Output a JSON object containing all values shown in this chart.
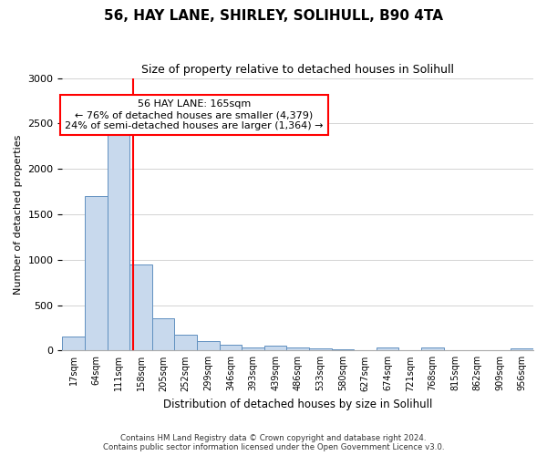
{
  "title": "56, HAY LANE, SHIRLEY, SOLIHULL, B90 4TA",
  "subtitle": "Size of property relative to detached houses in Solihull",
  "xlabel": "Distribution of detached houses by size in Solihull",
  "ylabel": "Number of detached properties",
  "bar_color": "#c8d9ed",
  "bar_edge_color": "#6090c0",
  "categories": [
    "17sqm",
    "64sqm",
    "111sqm",
    "158sqm",
    "205sqm",
    "252sqm",
    "299sqm",
    "346sqm",
    "393sqm",
    "439sqm",
    "486sqm",
    "533sqm",
    "580sqm",
    "627sqm",
    "674sqm",
    "721sqm",
    "768sqm",
    "815sqm",
    "862sqm",
    "909sqm",
    "956sqm"
  ],
  "values": [
    150,
    1700,
    2400,
    950,
    350,
    170,
    100,
    60,
    30,
    50,
    30,
    20,
    10,
    5,
    30,
    5,
    30,
    5,
    5,
    5,
    20
  ],
  "ylim": [
    0,
    3000
  ],
  "yticks": [
    0,
    500,
    1000,
    1500,
    2000,
    2500,
    3000
  ],
  "property_line_color": "red",
  "annotation_text": "56 HAY LANE: 165sqm\n← 76% of detached houses are smaller (4,379)\n24% of semi-detached houses are larger (1,364) →",
  "annotation_box_color": "white",
  "annotation_box_edgecolor": "red",
  "footer_line1": "Contains HM Land Registry data © Crown copyright and database right 2024.",
  "footer_line2": "Contains public sector information licensed under the Open Government Licence v3.0.",
  "background_color": "#ffffff",
  "grid_color": "#cccccc"
}
